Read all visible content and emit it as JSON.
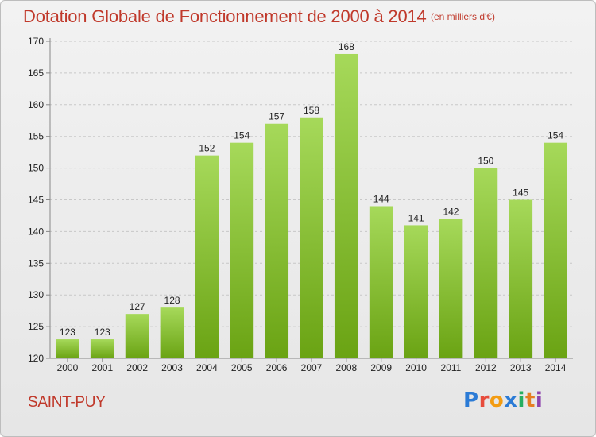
{
  "header": {
    "title": "Dotation Globale de Fonctionnement de 2000 à 2014",
    "subtitle": "(en milliers d'€)"
  },
  "footer": {
    "commune": "SAINT-PUY",
    "logo": "Proxiti"
  },
  "colors": {
    "bar_light": "#a6d95a",
    "bar_dark": "#6aa313",
    "title": "#c0392b",
    "axis": "#888888",
    "grid": "#c8c8c8"
  },
  "chart_data": {
    "type": "bar",
    "title": "Dotation Globale de Fonctionnement de 2000 à 2014",
    "subtitle": "(en milliers d'€)",
    "categories": [
      "2000",
      "2001",
      "2002",
      "2003",
      "2004",
      "2005",
      "2006",
      "2007",
      "2008",
      "2009",
      "2010",
      "2011",
      "2012",
      "2013",
      "2014"
    ],
    "values": [
      123,
      123,
      127,
      128,
      152,
      154,
      157,
      158,
      168,
      144,
      141,
      142,
      150,
      145,
      154
    ],
    "ylim": [
      120,
      170
    ],
    "yticks": [
      120,
      125,
      130,
      135,
      140,
      145,
      150,
      155,
      160,
      165,
      170
    ],
    "grid": true,
    "data_labels": true,
    "xlabel": "",
    "ylabel": ""
  }
}
